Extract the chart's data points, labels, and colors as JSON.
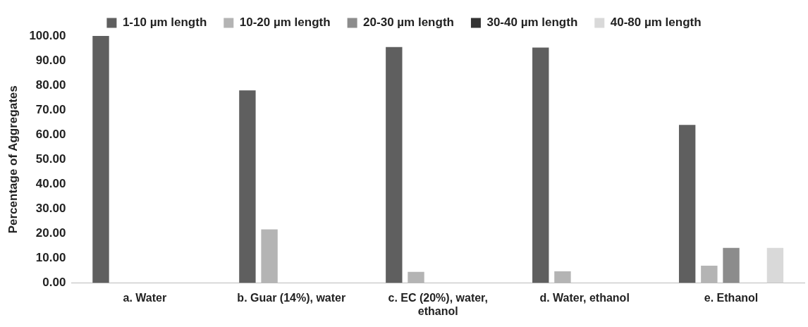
{
  "chart_data": {
    "type": "bar",
    "ylabel": "Percentage of Aggregates",
    "categories": [
      "a. Water",
      "b. Guar (14%), water",
      "c. EC (20%), water, ethanol",
      "d. Water, ethanol",
      "e. Ethanol"
    ],
    "series": [
      {
        "name": "1-10 µm length",
        "color": "#5f5f5f",
        "values": [
          100,
          78,
          95.5,
          95.3,
          64
        ]
      },
      {
        "name": "10-20 µm length",
        "color": "#b4b4b4",
        "values": [
          0,
          21.7,
          4.5,
          4.7,
          7
        ]
      },
      {
        "name": "20-30 µm length",
        "color": "#8c8c8c",
        "values": [
          0,
          0,
          0,
          0,
          14.2
        ]
      },
      {
        "name": "30-40 µm length",
        "color": "#333333",
        "values": [
          0,
          0,
          0,
          0,
          0
        ]
      },
      {
        "name": "40-80 µm length",
        "color": "#d9d9d9",
        "values": [
          0,
          0,
          0,
          0,
          14.2
        ]
      }
    ],
    "ylim": [
      0,
      100
    ],
    "yticks": [
      {
        "value": 0,
        "label": "0.00"
      },
      {
        "value": 10,
        "label": "10.00"
      },
      {
        "value": 20,
        "label": "20.00"
      },
      {
        "value": 30,
        "label": "30.00"
      },
      {
        "value": 40,
        "label": "40.00"
      },
      {
        "value": 50,
        "label": "50.00"
      },
      {
        "value": 60,
        "label": "60.00"
      },
      {
        "value": 70,
        "label": "70.00"
      },
      {
        "value": 80,
        "label": "80.00"
      },
      {
        "value": 90,
        "label": "90.00"
      },
      {
        "value": 100,
        "label": "100.00"
      }
    ],
    "grid": false,
    "legend": "top"
  }
}
